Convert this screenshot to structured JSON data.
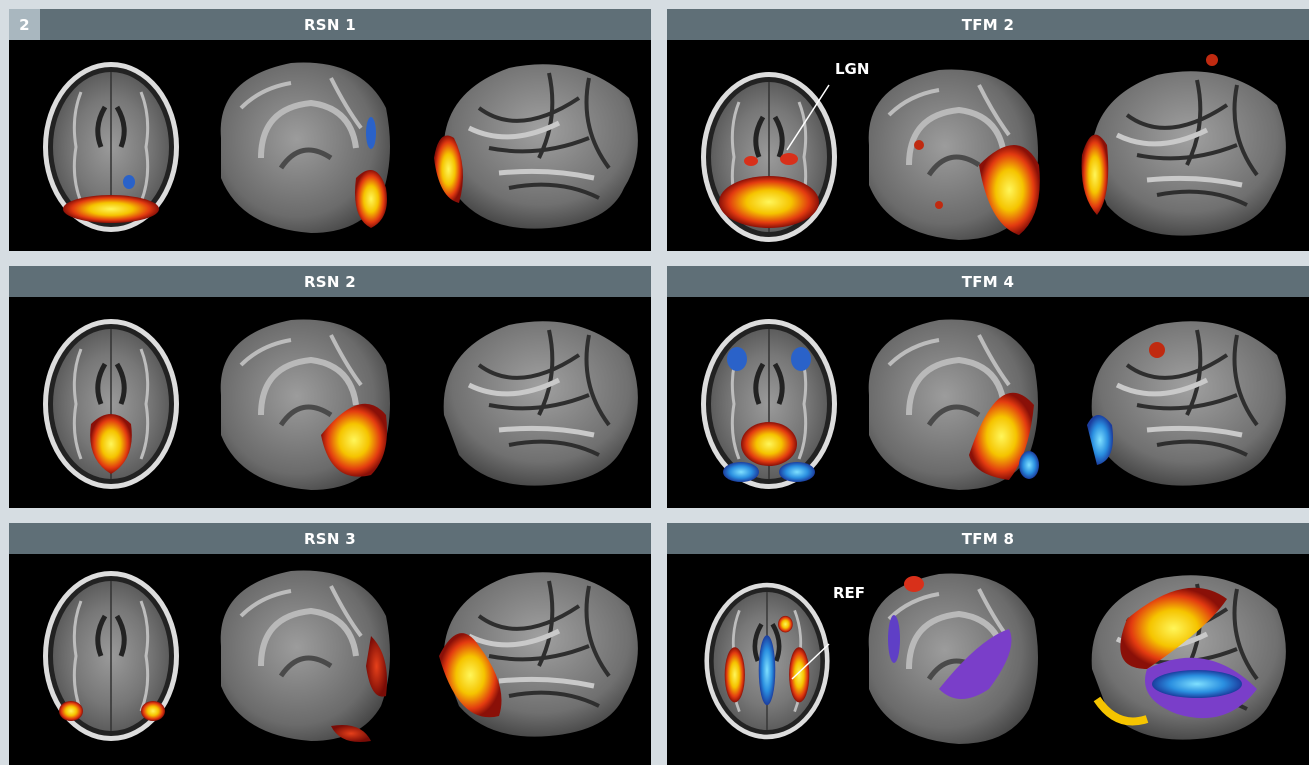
{
  "figure_number": "2",
  "panels": [
    {
      "id": "rsn1",
      "title": "RSN 1"
    },
    {
      "id": "tfm2",
      "title": "TFM 2",
      "annotation": "LGN"
    },
    {
      "id": "rsn2",
      "title": "RSN 2"
    },
    {
      "id": "tfm4",
      "title": "TFM 4"
    },
    {
      "id": "rsn3",
      "title": "RSN 3"
    },
    {
      "id": "tfm8",
      "title": "TFM 8",
      "annotation": "REF"
    }
  ],
  "colors": {
    "header": "#5f6f77",
    "figure_badge": "#a9b7bf",
    "background": "#d6dde2",
    "positive_activation": "#f5d400",
    "negative_activation": "#2a62c9"
  }
}
